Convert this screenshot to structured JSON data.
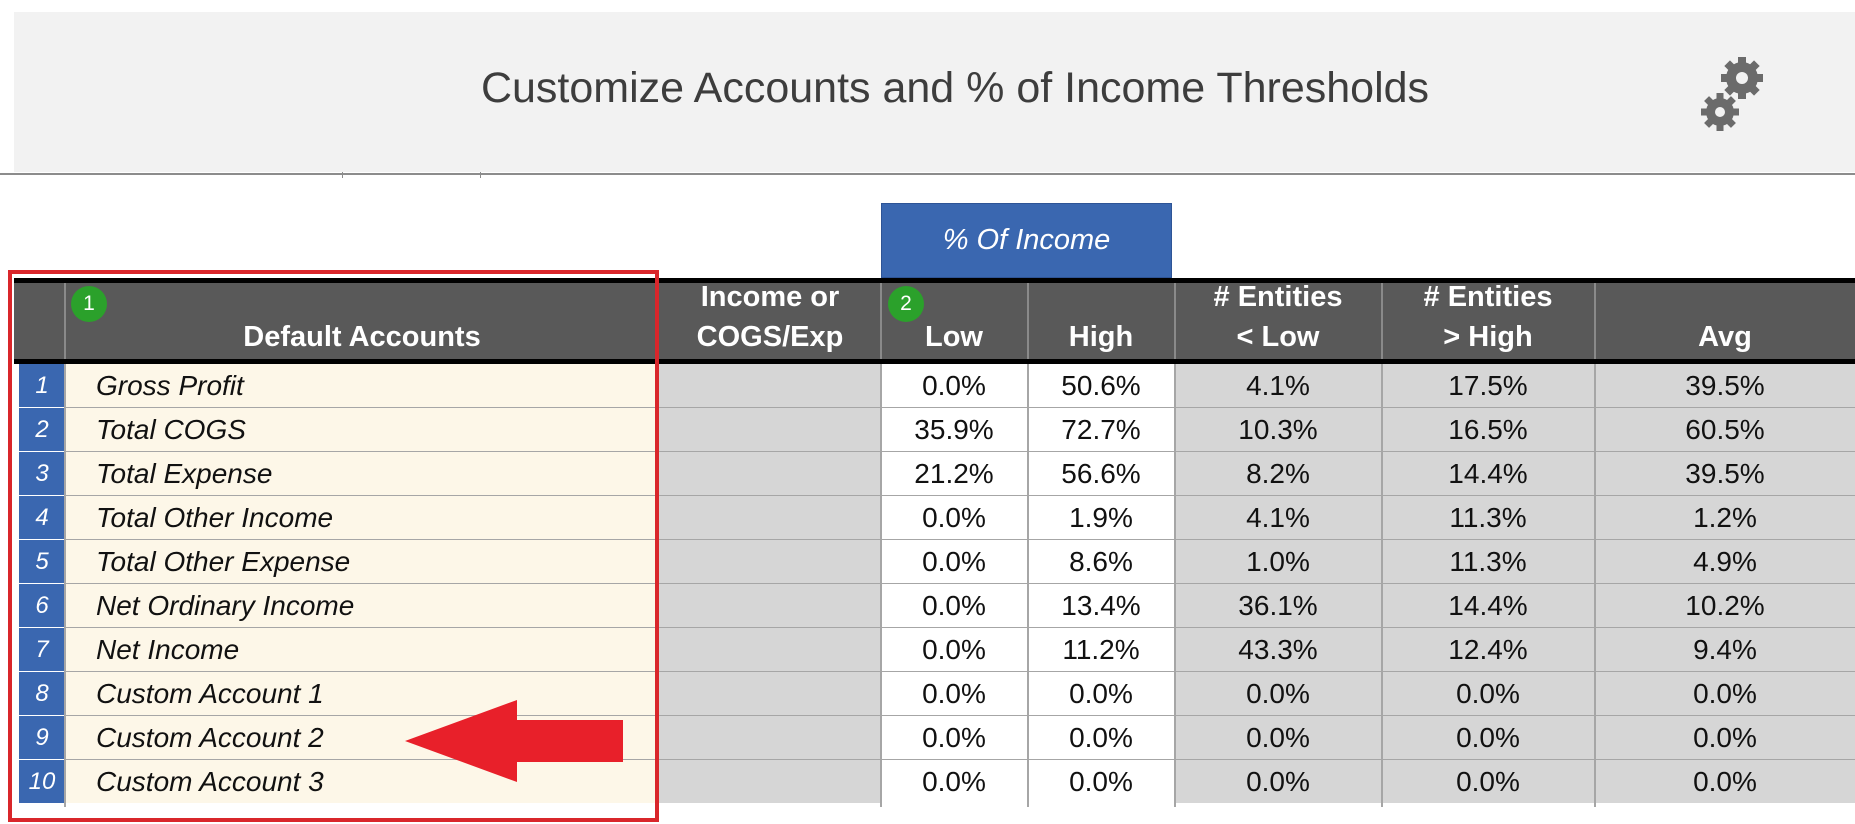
{
  "header": {
    "title": "Customize Accounts and % of Income Thresholds",
    "settings_icon": "gears-icon"
  },
  "tab": {
    "label": "% Of Income"
  },
  "badges": {
    "accounts": "1",
    "thresholds": "2"
  },
  "columns": {
    "accounts": "Default Accounts",
    "income_line1": "Income or",
    "income_line2": "COGS/Exp",
    "low": "Low",
    "high": "High",
    "entities_low_line1": "# Entities",
    "entities_low_line2": "< Low",
    "entities_high_line1": "# Entities",
    "entities_high_line2": "> High",
    "avg": "Avg"
  },
  "rows": [
    {
      "num": "1",
      "account": "Gross Profit",
      "low": "0.0%",
      "high": "50.6%",
      "entities_low": "4.1%",
      "entities_high": "17.5%",
      "avg": "39.5%"
    },
    {
      "num": "2",
      "account": "Total COGS",
      "low": "35.9%",
      "high": "72.7%",
      "entities_low": "10.3%",
      "entities_high": "16.5%",
      "avg": "60.5%"
    },
    {
      "num": "3",
      "account": "Total Expense",
      "low": "21.2%",
      "high": "56.6%",
      "entities_low": "8.2%",
      "entities_high": "14.4%",
      "avg": "39.5%"
    },
    {
      "num": "4",
      "account": "Total Other Income",
      "low": "0.0%",
      "high": "1.9%",
      "entities_low": "4.1%",
      "entities_high": "11.3%",
      "avg": "1.2%"
    },
    {
      "num": "5",
      "account": "Total Other Expense",
      "low": "0.0%",
      "high": "8.6%",
      "entities_low": "1.0%",
      "entities_high": "11.3%",
      "avg": "4.9%"
    },
    {
      "num": "6",
      "account": "Net Ordinary Income",
      "low": "0.0%",
      "high": "13.4%",
      "entities_low": "36.1%",
      "entities_high": "14.4%",
      "avg": "10.2%"
    },
    {
      "num": "7",
      "account": "Net Income",
      "low": "0.0%",
      "high": "11.2%",
      "entities_low": "43.3%",
      "entities_high": "12.4%",
      "avg": "9.4%"
    },
    {
      "num": "8",
      "account": "Custom Account 1",
      "low": "0.0%",
      "high": "0.0%",
      "entities_low": "0.0%",
      "entities_high": "0.0%",
      "avg": "0.0%"
    },
    {
      "num": "9",
      "account": "Custom Account 2",
      "low": "0.0%",
      "high": "0.0%",
      "entities_low": "0.0%",
      "entities_high": "0.0%",
      "avg": "0.0%"
    },
    {
      "num": "10",
      "account": "Custom Account 3",
      "low": "0.0%",
      "high": "0.0%",
      "entities_low": "0.0%",
      "entities_high": "0.0%",
      "avg": "0.0%"
    }
  ],
  "annotation": {
    "highlight_color": "#d9262b",
    "arrow_icon": "left-arrow-icon"
  }
}
